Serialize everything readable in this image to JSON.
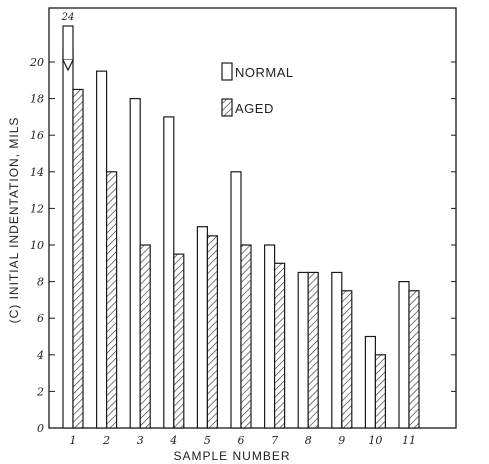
{
  "chart_data": {
    "type": "bar",
    "categories": [
      "1",
      "2",
      "3",
      "4",
      "5",
      "6",
      "7",
      "8",
      "9",
      "10",
      "11"
    ],
    "series": [
      {
        "name": "NORMAL",
        "values": [
          24,
          19.5,
          18,
          17,
          11,
          14,
          10,
          8.5,
          8.5,
          5,
          8
        ]
      },
      {
        "name": "AGED",
        "values": [
          18.5,
          14,
          10,
          9.5,
          10.5,
          10,
          9,
          8.5,
          7.5,
          4,
          7.5
        ]
      }
    ],
    "xlabel": "SAMPLE NUMBER",
    "ylabel": "(C) INITIAL INDENTATION, MILS",
    "ylim": [
      0,
      22
    ],
    "yticks": [
      0,
      2,
      4,
      6,
      8,
      10,
      12,
      14,
      16,
      18,
      20
    ],
    "axis_break": {
      "category": "1",
      "series": "NORMAL",
      "label": "24"
    },
    "legend_position": "top-center",
    "grid": false,
    "colors": {
      "normal_fill": "#ffffff",
      "aged_hatch": "#333333",
      "stroke": "#1a1a1a"
    }
  }
}
